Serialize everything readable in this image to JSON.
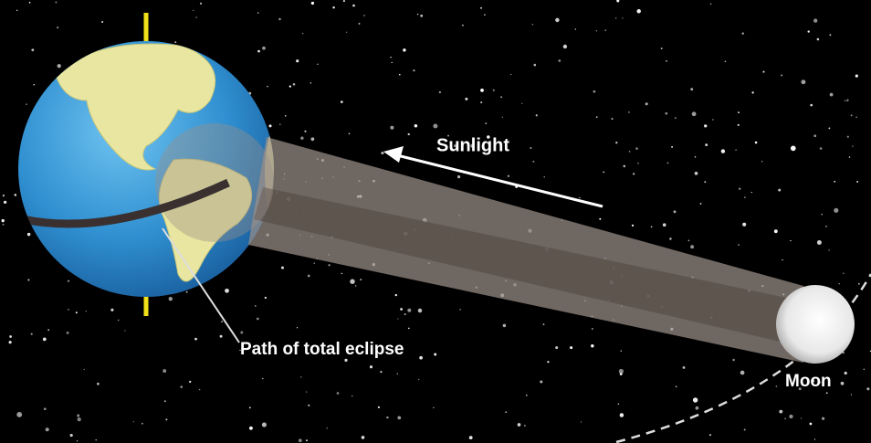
{
  "labels": {
    "sunlight": "Sunlight",
    "path": "Path of total eclipse",
    "moon": "Moon"
  }
}
